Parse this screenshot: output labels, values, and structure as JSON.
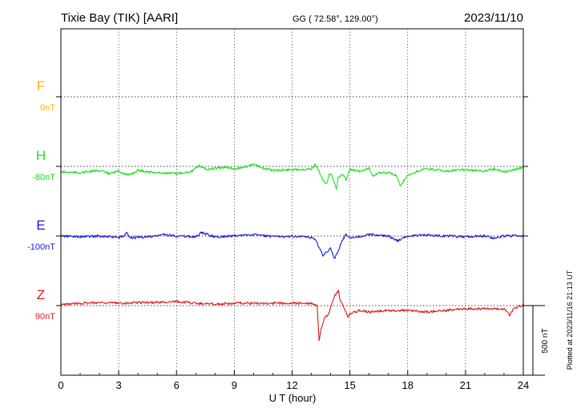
{
  "header": {
    "station": "Tixie Bay (TIK)  [AARI]",
    "coords": "GG ( 72.58°, 129.00°)",
    "date": "2023/11/10"
  },
  "plotted_note": "Plotted at 2023/11/16 21:13 UT",
  "scale_bar_label": "500 nT",
  "chart_data": {
    "type": "line",
    "title": "Tixie Bay (TIK)  [AARI]",
    "xlabel": "U T (hour)",
    "ylabel": "",
    "xlim": [
      0,
      24
    ],
    "xticks": [
      "0",
      "3",
      "6",
      "9",
      "12",
      "15",
      "18",
      "21",
      "24"
    ],
    "scale_nT": 500,
    "grid": true,
    "series": [
      {
        "name": "F",
        "baseline_label": "0nT",
        "color": "#f4b400",
        "points": []
      },
      {
        "name": "H",
        "baseline_label": "-80nT",
        "color": "#1de01d",
        "points": [
          [
            0,
            7
          ],
          [
            1,
            8
          ],
          [
            2,
            5
          ],
          [
            2.5,
            9
          ],
          [
            3,
            6
          ],
          [
            3.5,
            11
          ],
          [
            4,
            5
          ],
          [
            5,
            8
          ],
          [
            6,
            9
          ],
          [
            6.8,
            6
          ],
          [
            7.2,
            -1
          ],
          [
            7.6,
            4
          ],
          [
            8.5,
            1
          ],
          [
            9,
            3
          ],
          [
            9.5,
            1
          ],
          [
            10,
            -3
          ],
          [
            10.4,
            2
          ],
          [
            11,
            5
          ],
          [
            12,
            4
          ],
          [
            13,
            3
          ],
          [
            13.2,
            -2
          ],
          [
            13.4,
            6
          ],
          [
            13.6,
            18
          ],
          [
            13.8,
            22
          ],
          [
            13.9,
            12
          ],
          [
            14,
            8
          ],
          [
            14.2,
            20
          ],
          [
            14.3,
            28
          ],
          [
            14.4,
            14
          ],
          [
            14.6,
            10
          ],
          [
            14.8,
            16
          ],
          [
            15,
            4
          ],
          [
            15.5,
            6
          ],
          [
            16,
            2
          ],
          [
            16.2,
            12
          ],
          [
            16.5,
            8
          ],
          [
            17,
            8
          ],
          [
            17.4,
            11
          ],
          [
            17.6,
            24
          ],
          [
            18,
            12
          ],
          [
            18.5,
            6
          ],
          [
            19,
            3
          ],
          [
            20,
            6
          ],
          [
            21,
            4
          ],
          [
            22,
            6
          ],
          [
            22.5,
            3
          ],
          [
            23,
            7
          ],
          [
            23.5,
            4
          ],
          [
            24,
            1
          ]
        ]
      },
      {
        "name": "E",
        "baseline_label": "-100nT",
        "color": "#1a1ad0",
        "points": [
          [
            0,
            0
          ],
          [
            1,
            1
          ],
          [
            2,
            0
          ],
          [
            3,
            2
          ],
          [
            3.3,
            0
          ],
          [
            3.4,
            -4
          ],
          [
            3.6,
            2
          ],
          [
            4,
            2
          ],
          [
            5,
            0
          ],
          [
            5.3,
            -2
          ],
          [
            6,
            0
          ],
          [
            7,
            1
          ],
          [
            7.3,
            -4
          ],
          [
            8,
            1
          ],
          [
            9,
            0
          ],
          [
            10,
            -2
          ],
          [
            11,
            1
          ],
          [
            12,
            0
          ],
          [
            13,
            2
          ],
          [
            13.2,
            4
          ],
          [
            13.4,
            14
          ],
          [
            13.6,
            24
          ],
          [
            13.8,
            20
          ],
          [
            14,
            16
          ],
          [
            14.2,
            28
          ],
          [
            14.4,
            18
          ],
          [
            14.6,
            6
          ],
          [
            14.8,
            -2
          ],
          [
            15,
            2
          ],
          [
            15.5,
            1
          ],
          [
            16,
            -2
          ],
          [
            17,
            0
          ],
          [
            17.5,
            6
          ],
          [
            18,
            0
          ],
          [
            19,
            -1
          ],
          [
            20,
            0
          ],
          [
            21,
            1
          ],
          [
            22,
            0
          ],
          [
            22.5,
            3
          ],
          [
            23,
            0
          ],
          [
            24,
            0
          ]
        ]
      },
      {
        "name": "Z",
        "baseline_label": "90nT",
        "color": "#dd1a1a",
        "points": [
          [
            0,
            -1
          ],
          [
            1,
            -3
          ],
          [
            2,
            -4
          ],
          [
            3,
            -3
          ],
          [
            4,
            -4
          ],
          [
            5,
            -4
          ],
          [
            6,
            -5
          ],
          [
            7,
            -3
          ],
          [
            8,
            -2
          ],
          [
            9,
            -3
          ],
          [
            10,
            -3
          ],
          [
            11,
            -3
          ],
          [
            12,
            -3
          ],
          [
            13,
            -3
          ],
          [
            13.3,
            0
          ],
          [
            13.4,
            45
          ],
          [
            13.5,
            30
          ],
          [
            13.7,
            15
          ],
          [
            13.9,
            10
          ],
          [
            14,
            2
          ],
          [
            14.2,
            -12
          ],
          [
            14.4,
            -18
          ],
          [
            14.5,
            -6
          ],
          [
            14.7,
            2
          ],
          [
            14.9,
            14
          ],
          [
            15,
            10
          ],
          [
            15.5,
            6
          ],
          [
            16,
            8
          ],
          [
            17,
            6
          ],
          [
            18,
            6
          ],
          [
            19,
            8
          ],
          [
            20,
            6
          ],
          [
            21,
            4
          ],
          [
            22,
            4
          ],
          [
            23,
            4
          ],
          [
            23.3,
            12
          ],
          [
            23.5,
            4
          ],
          [
            24,
            -1
          ]
        ]
      }
    ]
  }
}
